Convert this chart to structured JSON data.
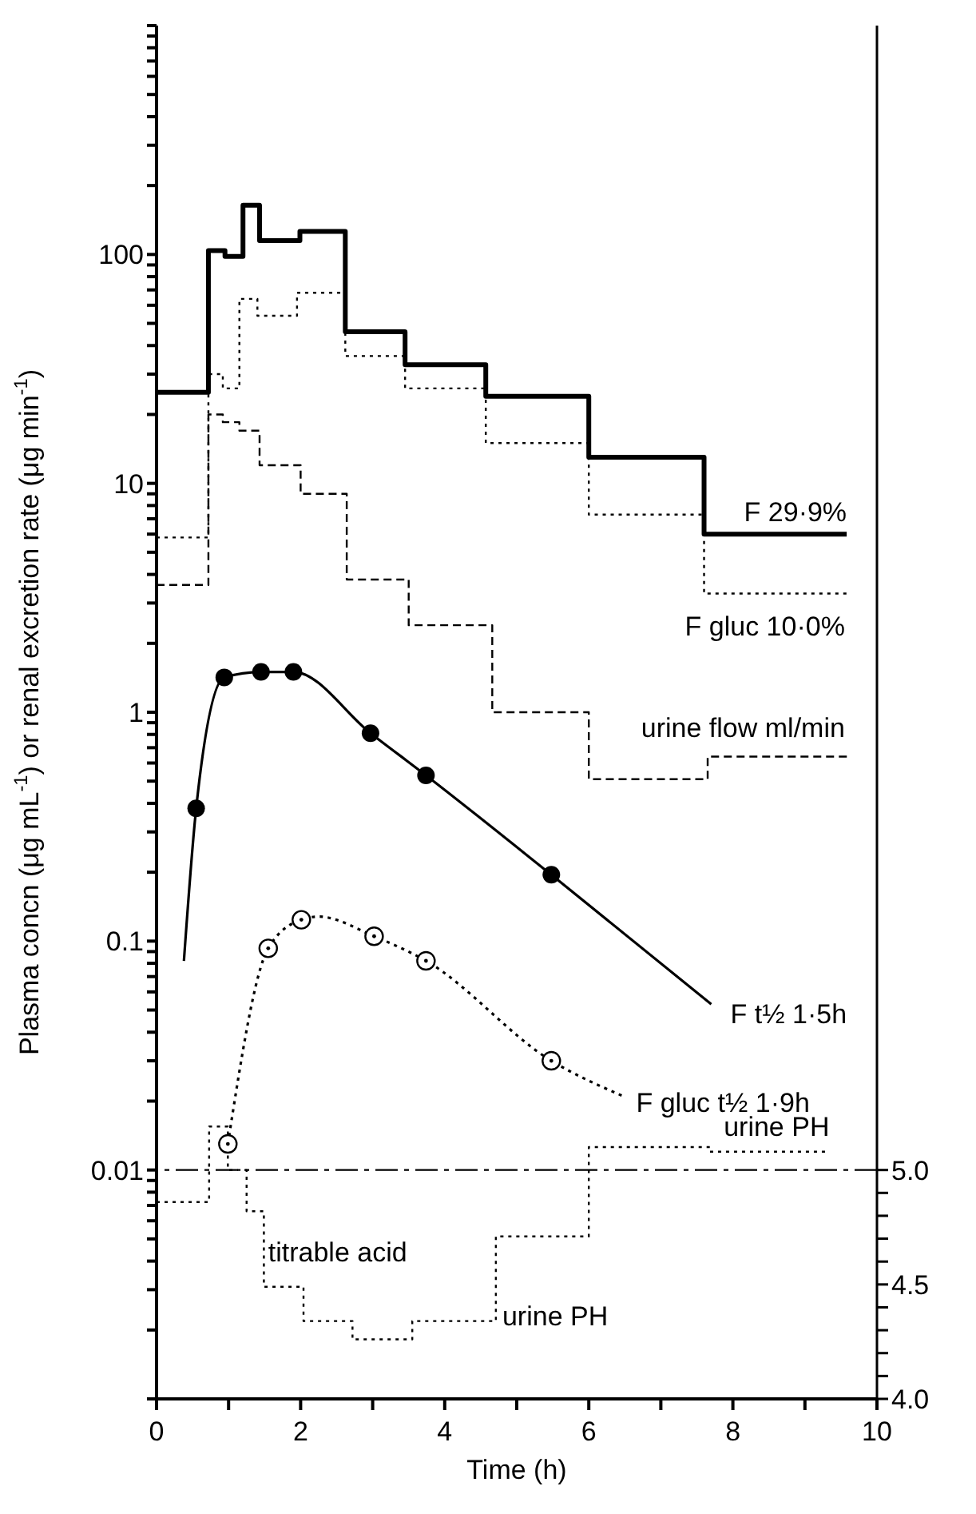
{
  "chart_data": {
    "type": "step",
    "xlabel": "Time (h)",
    "ylabel": "Plasma concn (μg mL$^{-1}$) or renal excretion rate (μg min$^{-1}$)",
    "log": "y",
    "grid": false,
    "legend": false,
    "xlim": [
      0,
      10
    ],
    "xticks": [
      0,
      {
        "value": 1,
        "label": null
      },
      2,
      {
        "value": 3,
        "label": null
      },
      4,
      {
        "value": 5,
        "label": null
      },
      6,
      {
        "value": 7,
        "label": null
      },
      8,
      {
        "value": 9,
        "label": null
      },
      10
    ],
    "ylim": [
      0.001,
      1000
    ],
    "yticks": [
      {
        "value": 0.001,
        "label": null
      },
      {
        "value": 0.002,
        "label": null
      },
      {
        "value": 0.003,
        "label": null
      },
      {
        "value": 0.004,
        "label": null
      },
      {
        "value": 0.005,
        "label": null
      },
      {
        "value": 0.006,
        "label": null
      },
      {
        "value": 0.007,
        "label": null
      },
      {
        "value": 0.008,
        "label": null
      },
      {
        "value": 0.009,
        "label": null
      },
      0.01,
      {
        "value": 0.02,
        "label": null
      },
      {
        "value": 0.03,
        "label": null
      },
      {
        "value": 0.04,
        "label": null
      },
      {
        "value": 0.05,
        "label": null
      },
      {
        "value": 0.06,
        "label": null
      },
      {
        "value": 0.07,
        "label": null
      },
      {
        "value": 0.08,
        "label": null
      },
      {
        "value": 0.09,
        "label": null
      },
      0.1,
      {
        "value": 0.2,
        "label": null
      },
      {
        "value": 0.3,
        "label": null
      },
      {
        "value": 0.4,
        "label": null
      },
      {
        "value": 0.5,
        "label": null
      },
      {
        "value": 0.6,
        "label": null
      },
      {
        "value": 0.7,
        "label": null
      },
      {
        "value": 0.8,
        "label": null
      },
      {
        "value": 0.9,
        "label": null
      },
      1,
      {
        "value": 2,
        "label": null
      },
      {
        "value": 3,
        "label": null
      },
      {
        "value": 4,
        "label": null
      },
      {
        "value": 5,
        "label": null
      },
      {
        "value": 6,
        "label": null
      },
      {
        "value": 7,
        "label": null
      },
      {
        "value": 8,
        "label": null
      },
      {
        "value": 9,
        "label": null
      },
      10,
      {
        "value": 20,
        "label": null
      },
      {
        "value": 30,
        "label": null
      },
      {
        "value": 40,
        "label": null
      },
      {
        "value": 50,
        "label": null
      },
      {
        "value": 60,
        "label": null
      },
      {
        "value": 70,
        "label": null
      },
      {
        "value": 80,
        "label": null
      },
      {
        "value": 90,
        "label": null
      },
      100,
      {
        "value": 200,
        "label": null
      },
      {
        "value": 300,
        "label": null
      },
      {
        "value": 400,
        "label": null
      },
      {
        "value": 500,
        "label": null
      },
      {
        "value": 600,
        "label": null
      },
      {
        "value": 700,
        "label": null
      },
      {
        "value": 800,
        "label": null
      },
      {
        "value": 900,
        "label": null
      },
      {
        "value": 1000,
        "label": null
      }
    ],
    "y2lim": [
      4,
      10
    ],
    "y2ticks": [
      {
        "value": 4,
        "label": "4.0"
      },
      {
        "value": 4.1,
        "label": null
      },
      {
        "value": 4.2,
        "label": null
      },
      {
        "value": 4.3,
        "label": null
      },
      {
        "value": 4.4,
        "label": null
      },
      {
        "value": 4.5,
        "label": "4.5"
      },
      {
        "value": 4.6,
        "label": null
      },
      {
        "value": 4.7,
        "label": null
      },
      {
        "value": 4.8,
        "label": null
      },
      {
        "value": 4.9,
        "label": null
      },
      {
        "value": 5,
        "label": "5.0"
      }
    ],
    "ref_lines": [
      {
        "axis": "y2",
        "value": 5,
        "color": "#000000",
        "line_style": "dashed"
      }
    ],
    "annotations": [
      "titrable acid",
      "urine PH"
    ],
    "series": [
      {
        "name": "F 29·9%",
        "color": "#000000",
        "line_style": "solid",
        "x": [
          0,
          0.72,
          0.95,
          1.2,
          1.43,
          1.99,
          2.62,
          3.45,
          4.57,
          6.0,
          7.6,
          9.58
        ],
        "values": [
          25,
          104,
          98,
          164,
          115,
          126,
          46,
          33,
          24,
          13,
          6,
          6
        ]
      },
      {
        "name": "F gluc 10·0%",
        "color": "#000000",
        "line_style": "dotted",
        "x": [
          0,
          0.72,
          0.92,
          1.15,
          1.4,
          1.95,
          2.62,
          3.45,
          4.57,
          6.0,
          7.6,
          9.6
        ],
        "values": [
          5.8,
          30,
          26,
          64,
          54,
          68,
          36,
          26,
          15,
          7.3,
          3.3,
          3.3
        ]
      },
      {
        "name": "urine flow ml/min",
        "color": "#000000",
        "line_style": "dashed",
        "x": [
          0,
          0.72,
          0.92,
          1.15,
          1.43,
          2.0,
          2.64,
          3.5,
          4.66,
          6.0,
          7.65,
          9.6
        ],
        "values": [
          3.6,
          20,
          18.5,
          17,
          12,
          9,
          3.8,
          2.4,
          1.0,
          0.51,
          0.64,
          0.64
        ]
      },
      {
        "name": "F t½ 1·5h",
        "type": "line",
        "color": "#000000",
        "line_style": "solid",
        "marker": "none",
        "x": [
          0.38,
          0.55,
          0.94,
          1.45,
          1.9,
          2.97,
          3.74,
          5.48,
          7.7
        ],
        "values": [
          0.082,
          0.38,
          1.42,
          1.5,
          1.5,
          0.81,
          0.53,
          0.195,
          0.053
        ]
      },
      {
        "type": "scatter",
        "color": "#000000",
        "marker": "circle",
        "x": [
          0.55,
          0.94,
          1.45,
          1.9,
          2.97,
          3.74,
          5.48
        ],
        "values": [
          0.38,
          1.42,
          1.5,
          1.5,
          0.81,
          0.53,
          0.195
        ]
      },
      {
        "name": "F gluc t½ 1·9h",
        "type": "line",
        "color": "#000000",
        "line_style": "dotted",
        "marker": "none",
        "x": [
          0.99,
          1.55,
          2.01,
          2.25,
          3.02,
          3.74,
          5.48,
          6.48
        ],
        "values": [
          0.013,
          0.093,
          0.124,
          0.128,
          0.105,
          0.082,
          0.03,
          0.021
        ]
      },
      {
        "type": "scatter",
        "color": "#000000",
        "marker": "circle",
        "x": [
          0.99,
          1.55,
          2.01,
          3.02,
          3.74,
          5.48
        ],
        "values": [
          0.013,
          0.093,
          0.124,
          0.105,
          0.082,
          0.03
        ]
      },
      {
        "name": "urine PH",
        "axis": "y2",
        "color": "#000000",
        "line_style": "dotted",
        "x": [
          0,
          0.73,
          0.99,
          1.25,
          1.49,
          2.04,
          2.72,
          3.55,
          4.71,
          6.0,
          7.68,
          9.34
        ],
        "values": [
          4.86,
          5.19,
          5.0,
          4.82,
          4.49,
          4.34,
          4.26,
          4.34,
          4.71,
          5.1,
          5.08,
          5.08
        ]
      }
    ]
  }
}
